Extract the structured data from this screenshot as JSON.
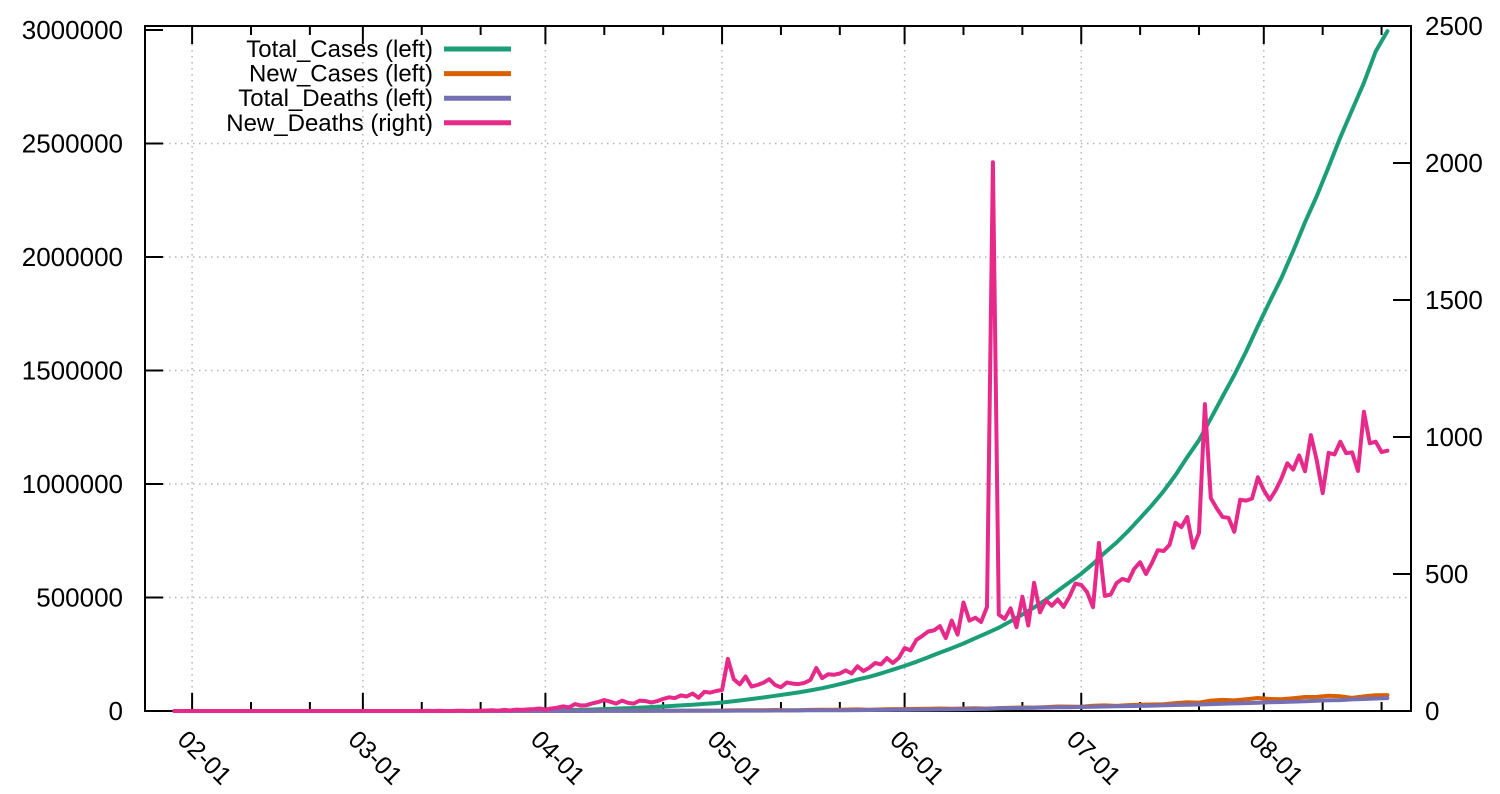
{
  "page": {
    "background": "#ffffff"
  },
  "chart_data": {
    "type": "line",
    "title": "",
    "xlabel": "",
    "ylabel_left": "",
    "ylabel_right": "",
    "x_axis": {
      "min_date": "2020-01-24",
      "max_date": "2020-08-26",
      "span_days": 215,
      "major_ticks": [
        {
          "day": 8,
          "label": "02-01"
        },
        {
          "day": 37,
          "label": "03-01"
        },
        {
          "day": 68,
          "label": "04-01"
        },
        {
          "day": 98,
          "label": "05-01"
        },
        {
          "day": 129,
          "label": "06-01"
        },
        {
          "day": 159,
          "label": "07-01"
        },
        {
          "day": 190,
          "label": "08-01"
        }
      ],
      "minor_tick_days": [
        18,
        28,
        47,
        57,
        78,
        88,
        108,
        118,
        139,
        149,
        169,
        179,
        200,
        210
      ]
    },
    "y_left": {
      "min": 0,
      "max": 3000000,
      "ticks": [
        {
          "v": 0,
          "label": "0"
        },
        {
          "v": 500000,
          "label": "500000"
        },
        {
          "v": 1000000,
          "label": "1000000"
        },
        {
          "v": 1500000,
          "label": "1500000"
        },
        {
          "v": 2000000,
          "label": "2000000"
        },
        {
          "v": 2500000,
          "label": "2500000"
        },
        {
          "v": 3000000,
          "label": "3000000"
        }
      ]
    },
    "y_right": {
      "min": 0,
      "max": 2500,
      "ticks": [
        {
          "v": 0,
          "label": "0"
        },
        {
          "v": 500,
          "label": "500"
        },
        {
          "v": 1000,
          "label": "1000"
        },
        {
          "v": 1500,
          "label": "1500"
        },
        {
          "v": 2000,
          "label": "2000"
        },
        {
          "v": 2500,
          "label": "2500"
        }
      ]
    },
    "grid": {
      "color": "#b5b5b5",
      "style": "dotted",
      "vertical_at_months": true,
      "horizontal_at_left_ticks": [
        500000,
        1000000,
        1500000,
        2000000,
        2500000
      ]
    },
    "legend": {
      "position": "top-left-inside",
      "entries": [
        {
          "label": "Total_Cases (left)",
          "color": "#1B9E77"
        },
        {
          "label": "New_Cases (left)",
          "color": "#D95F02"
        },
        {
          "label": "Total_Deaths (left)",
          "color": "#7570B3"
        },
        {
          "label": "New_Deaths (right)",
          "color": "#E7298A"
        }
      ]
    },
    "series": [
      {
        "name": "Total_Cases",
        "legend_label": "Total_Cases (left)",
        "axis": "left",
        "color": "#1B9E77",
        "start_day_offset": 5,
        "step_days": 2,
        "values": [
          0,
          1,
          2,
          3,
          3,
          3,
          3,
          3,
          3,
          3,
          3,
          3,
          3,
          3,
          3,
          3,
          3,
          5,
          30,
          34,
          44,
          62,
          82,
          114,
          142,
          194,
          315,
          499,
          657,
          887,
          1024,
          1397,
          2059,
          3082,
          4778,
          5916,
          7600,
          9205,
          11487,
          13430,
          15722,
          18539,
          21370,
          24506,
          27890,
          31324,
          34863,
          39980,
          46433,
          52987,
          59662,
          67161,
          74281,
          81970,
          90927,
          100340,
          112028,
          124794,
          138845,
          150793,
          165799,
          182143,
          198706,
          216919,
          236657,
          257486,
          276583,
          297535,
          320922,
          343091,
          366946,
          395048,
          425282,
          456183,
          490401,
          528859,
          566840,
          604641,
          648315,
          697413,
          742417,
          793802,
          849522,
          906752,
          968876,
          1039084,
          1118043,
          1193078,
          1288108,
          1385522,
          1480073,
          1583792,
          1695988,
          1803695,
          1908254,
          2027074,
          2153010,
          2268675,
          2396637,
          2527074,
          2647663,
          2767253,
          2905823,
          2995000
        ]
      },
      {
        "name": "New_Cases",
        "legend_label": "New_Cases (left)",
        "axis": "left",
        "color": "#D95F02",
        "start_day_offset": 5,
        "step_days": 2,
        "values": [
          0,
          1,
          1,
          0,
          0,
          0,
          0,
          0,
          0,
          0,
          0,
          0,
          0,
          0,
          0,
          0,
          0,
          2,
          22,
          4,
          5,
          9,
          11,
          27,
          15,
          28,
          74,
          102,
          80,
          149,
          106,
          227,
          437,
          579,
          693,
          565,
          871,
          918,
          1463,
          941,
          1371,
          1580,
          1486,
          1684,
          1607,
          1902,
          1801,
          2567,
          3656,
          2958,
          3344,
          4311,
          3604,
          3722,
          4794,
          5242,
          5611,
          6088,
          7113,
          5907,
          7254,
          8380,
          8171,
          9304,
          9851,
          10884,
          9985,
          11128,
          11929,
          10667,
          12881,
          14721,
          15413,
          14933,
          17296,
          19906,
          19428,
          18653,
          22771,
          24850,
          22252,
          25790,
          27754,
          28701,
          29429,
          34884,
          38902,
          37148,
          45720,
          48916,
          46484,
          52123,
          57118,
          52672,
          52050,
          56282,
          61537,
          62064,
          66999,
          64553,
          57981,
          64531,
          69672,
          69878
        ]
      },
      {
        "name": "Total_Deaths",
        "legend_label": "Total_Deaths (left)",
        "axis": "left",
        "color": "#7570B3",
        "start_day_offset": 5,
        "step_days": 2,
        "values": [
          0,
          0,
          0,
          0,
          0,
          0,
          0,
          0,
          0,
          0,
          0,
          0,
          0,
          0,
          0,
          0,
          0,
          0,
          0,
          0,
          0,
          0,
          1,
          2,
          3,
          4,
          6,
          10,
          13,
          20,
          27,
          35,
          53,
          86,
          136,
          178,
          249,
          331,
          393,
          448,
          521,
          592,
          681,
          775,
          881,
          1008,
          1154,
          1391,
          1568,
          1785,
          1981,
          2212,
          2415,
          2649,
          2872,
          3155,
          3434,
          3726,
          4021,
          4344,
          4711,
          5185,
          5608,
          6088,
          6649,
          7200,
          7750,
          8498,
          9195,
          9915,
          12259,
          12970,
          13699,
          14476,
          15301,
          16095,
          16893,
          17834,
          18655,
          19700,
          20576,
          21604,
          22673,
          23727,
          24915,
          26273,
          27497,
          28732,
          30601,
          32063,
          33408,
          34968,
          36511,
          38135,
          39795,
          41585,
          43379,
          45257,
          47033,
          48040,
          50921,
          52888,
          54849,
          56846
        ]
      },
      {
        "name": "New_Deaths",
        "legend_label": "New_Deaths (right)",
        "axis": "right",
        "color": "#E7298A",
        "start_day_offset": 5,
        "step_days": 1,
        "values": [
          0,
          0,
          0,
          0,
          0,
          0,
          0,
          0,
          0,
          0,
          0,
          0,
          0,
          0,
          0,
          0,
          0,
          0,
          0,
          0,
          0,
          0,
          0,
          0,
          0,
          0,
          0,
          0,
          0,
          0,
          0,
          0,
          0,
          0,
          0,
          0,
          0,
          0,
          0,
          0,
          0,
          0,
          0,
          1,
          0,
          1,
          0,
          0,
          1,
          1,
          0,
          1,
          1,
          2,
          3,
          1,
          4,
          2,
          5,
          4,
          6,
          7,
          9,
          5,
          9,
          12,
          17,
          13,
          25,
          20,
          21,
          28,
          33,
          40,
          34,
          27,
          38,
          30,
          27,
          38,
          36,
          31,
          36,
          44,
          50,
          47,
          57,
          53,
          64,
          48,
          70,
          67,
          73,
          77,
          190,
          116,
          97,
          126,
          89,
          95,
          103,
          116,
          95,
          87,
          104,
          100,
          98,
          103,
          113,
          157,
          120,
          134,
          132,
          137,
          148,
          137,
          163,
          146,
          158,
          175,
          170,
          193,
          175,
          193,
          230,
          221,
          260,
          274,
          290,
          294,
          310,
          266,
          330,
          279,
          396,
          330,
          340,
          325,
          380,
          2003,
          352,
          336,
          375,
          306,
          417,
          312,
          468,
          360,
          404,
          384,
          407,
          380,
          418,
          465,
          460,
          434,
          379,
          613,
          420,
          425,
          467,
          482,
          475,
          519,
          543,
          500,
          540,
          587,
          584,
          607,
          687,
          671,
          708,
          596,
          650,
          1120,
          777,
          740,
          708,
          705,
          654,
          771,
          768,
          775,
          853,
          806,
          771,
          805,
          849,
          904,
          881,
          933,
          875,
          1007,
          914,
          795,
          942,
          936,
          983,
          941,
          944,
          876,
          1092,
          977,
          983,
          945,
          950
        ]
      }
    ],
    "style": {
      "series_line_width": 4,
      "border_color": "#000000",
      "background": "#ffffff"
    }
  }
}
